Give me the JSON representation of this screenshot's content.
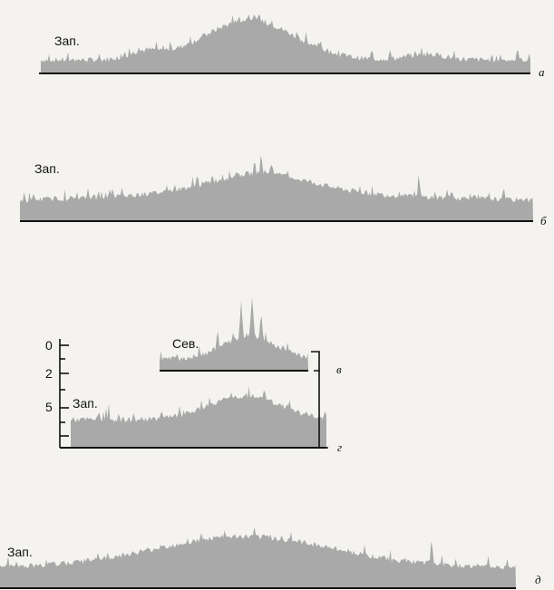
{
  "diagram": {
    "colors": {
      "silhouette": "#a9a9a9",
      "baseline": "#111111",
      "background": "#f4f3f0"
    },
    "profiles": [
      {
        "id": "a",
        "direction_label": "Зап.",
        "letter": "а"
      },
      {
        "id": "b",
        "direction_label": "Зап.",
        "letter": "б"
      },
      {
        "id": "v",
        "direction_label": "Сев.",
        "letter": "в"
      },
      {
        "id": "g",
        "direction_label": "Зап.",
        "letter": "г"
      },
      {
        "id": "d",
        "direction_label": "Зап.",
        "letter": "д"
      }
    ],
    "scale": {
      "ticks": [
        "0",
        "2",
        "5"
      ]
    }
  }
}
